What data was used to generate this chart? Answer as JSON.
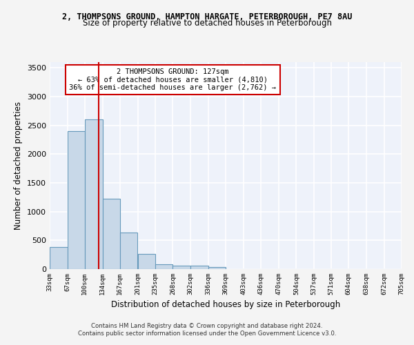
{
  "title_line1": "2, THOMPSONS GROUND, HAMPTON HARGATE, PETERBOROUGH, PE7 8AU",
  "title_line2": "Size of property relative to detached houses in Peterborough",
  "xlabel": "Distribution of detached houses by size in Peterborough",
  "ylabel": "Number of detached properties",
  "footer_line1": "Contains HM Land Registry data © Crown copyright and database right 2024.",
  "footer_line2": "Contains public sector information licensed under the Open Government Licence v3.0.",
  "annotation_line1": "2 THOMPSONS GROUND: 127sqm",
  "annotation_line2": "← 63% of detached houses are smaller (4,810)",
  "annotation_line3": "36% of semi-detached houses are larger (2,762) →",
  "subject_sqm": 127,
  "bar_color": "#c8d8e8",
  "bar_edge_color": "#6699bb",
  "vline_color": "#cc0000",
  "background_color": "#eef2fa",
  "grid_color": "#ffffff",
  "fig_background": "#f4f4f4",
  "bins": [
    33,
    67,
    100,
    134,
    167,
    201,
    235,
    268,
    302,
    336,
    369,
    403,
    436,
    470,
    504,
    537,
    571,
    604,
    638,
    672,
    705
  ],
  "values": [
    390,
    2400,
    2600,
    1230,
    640,
    260,
    90,
    55,
    55,
    40,
    0,
    0,
    0,
    0,
    0,
    0,
    0,
    0,
    0,
    0
  ],
  "ylim": [
    0,
    3600
  ],
  "yticks": [
    0,
    500,
    1000,
    1500,
    2000,
    2500,
    3000,
    3500
  ]
}
